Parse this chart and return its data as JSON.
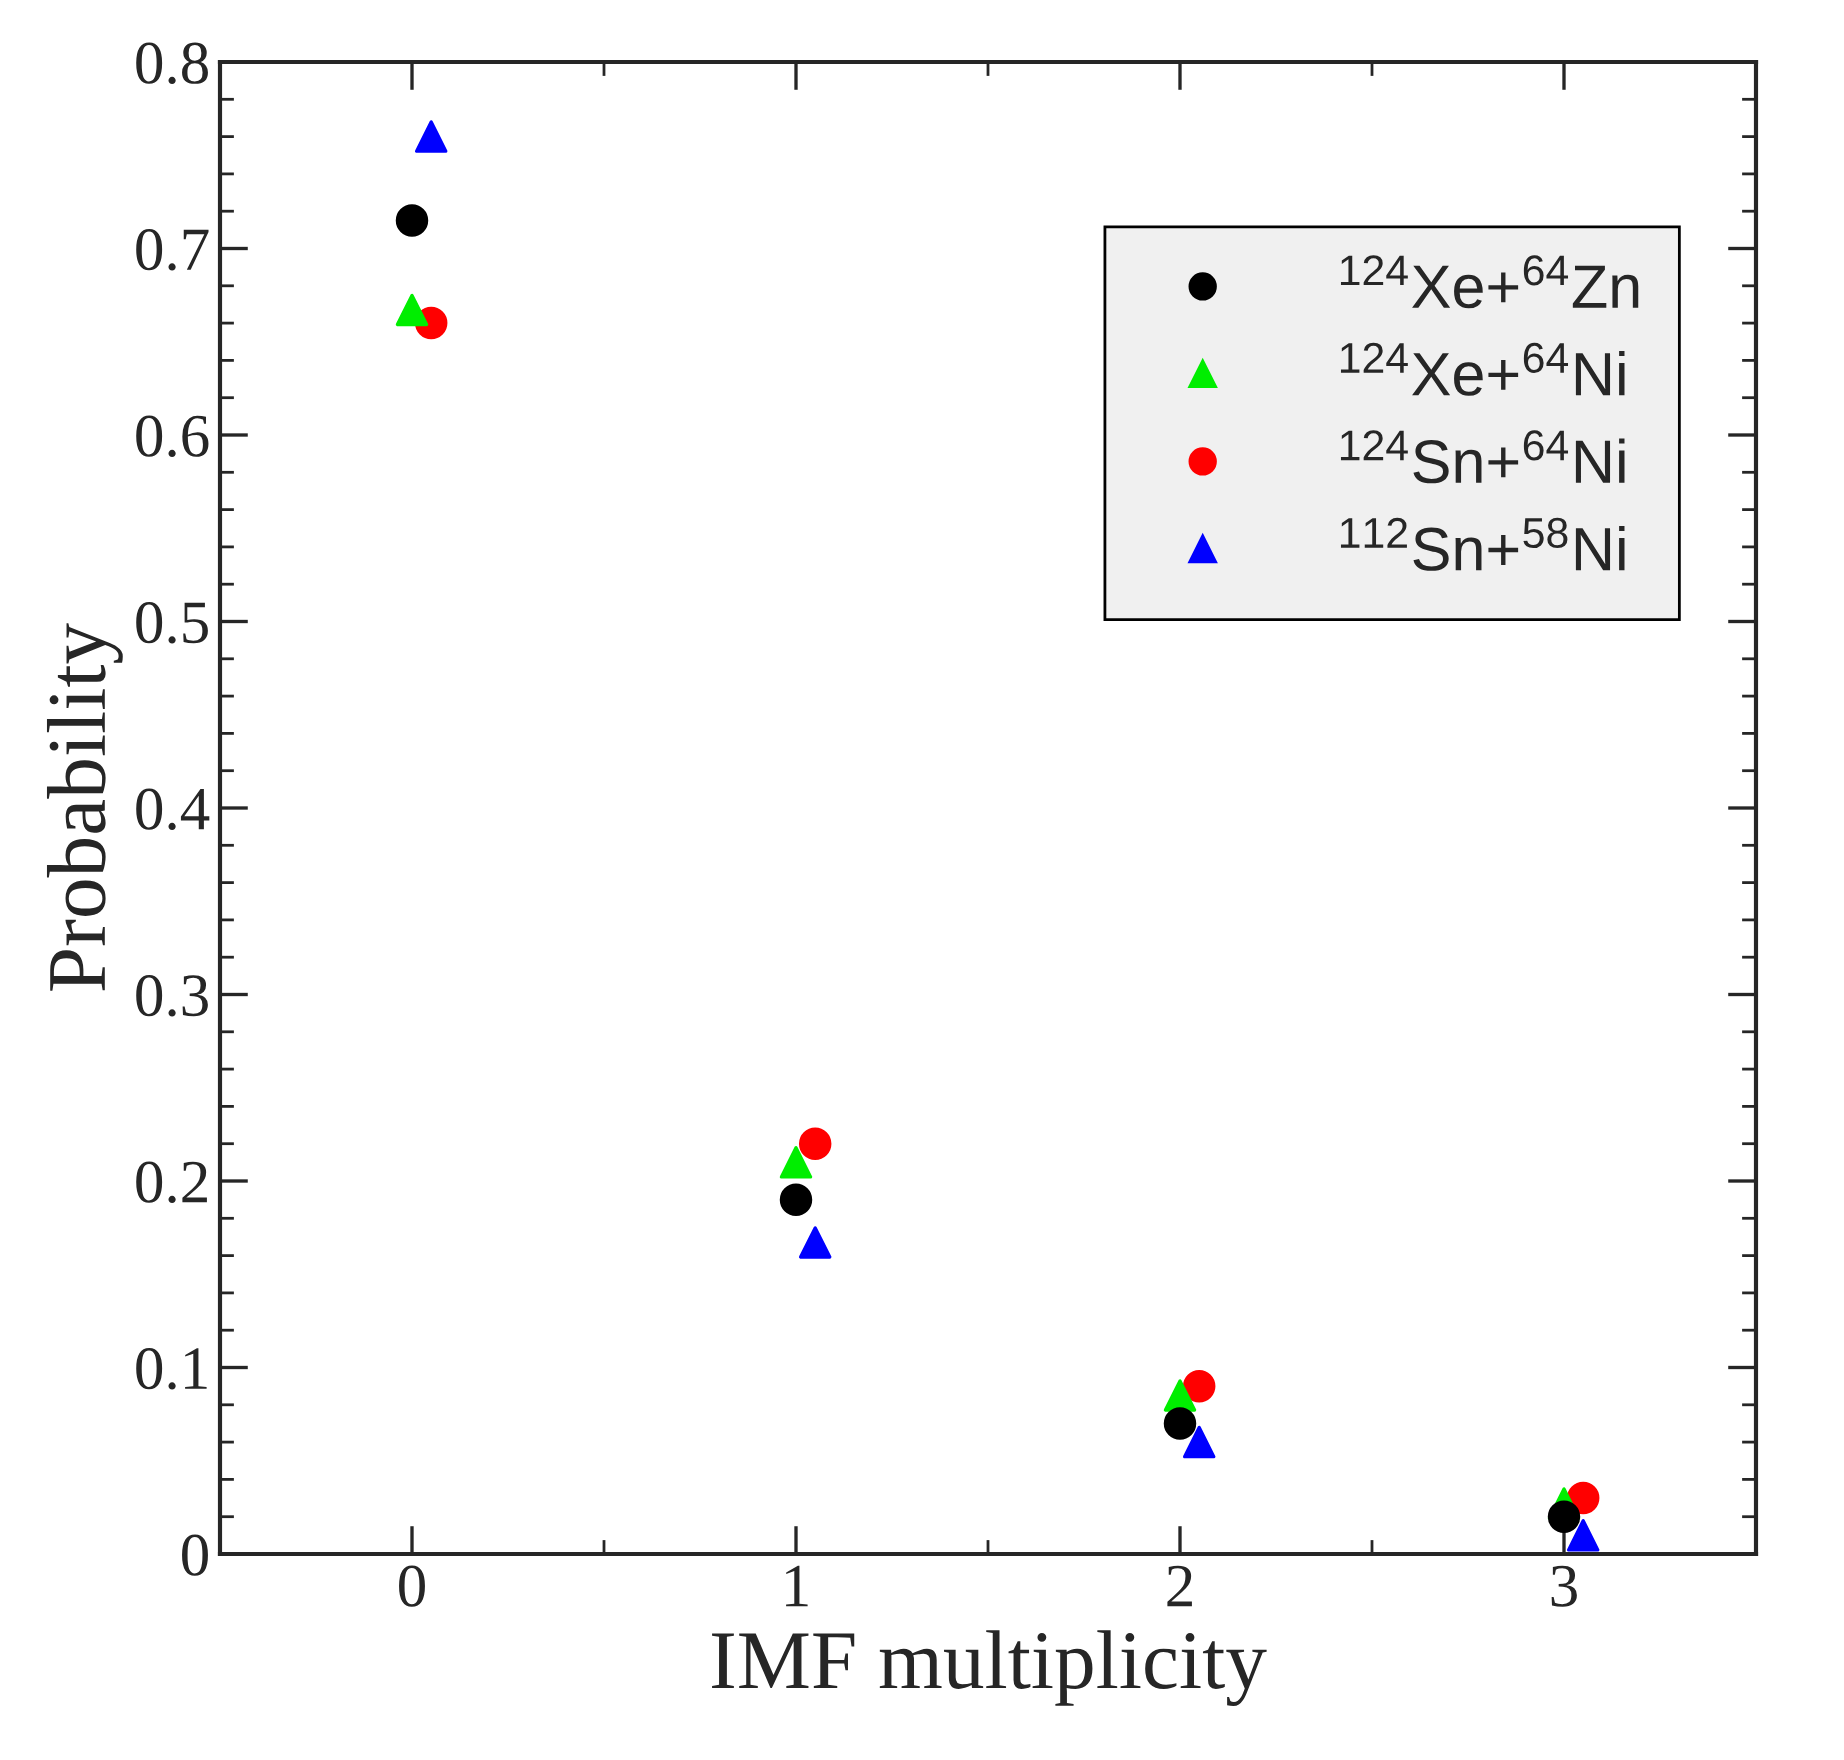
{
  "chart_data": {
    "type": "scatter",
    "xlabel": "IMF multiplicity",
    "ylabel": "Probability",
    "xlim": [
      -0.5,
      3.5
    ],
    "xticks": [
      0,
      1,
      2,
      3
    ],
    "ylim": [
      0,
      0.8
    ],
    "yticks": [
      0,
      0.1,
      0.2,
      0.3,
      0.4,
      0.5,
      0.6,
      0.7,
      0.8
    ],
    "grid": false,
    "legend": "top right",
    "series": [
      {
        "name": "$^{124}$Xe+$^{64}$Zn",
        "color": "#000000",
        "marker": "circle",
        "x": [
          0,
          1,
          2,
          3
        ],
        "values": [
          0.715,
          0.19,
          0.07,
          0.02
        ]
      },
      {
        "name": "$^{124}$Xe+$^{64}$Ni",
        "color": "#00ee00",
        "marker": "triangle",
        "x": [
          0,
          1,
          2,
          3
        ],
        "values": [
          0.667,
          0.21,
          0.085,
          0.027
        ]
      },
      {
        "name": "$^{124}$Sn+$^{64}$Ni",
        "color": "#ff0000",
        "marker": "circle",
        "x": [
          0.05,
          1.05,
          2.05,
          3.05
        ],
        "values": [
          0.66,
          0.22,
          0.09,
          0.03
        ]
      },
      {
        "name": "$^{112}$Sn+$^{58}$Ni",
        "color": "#0000ff",
        "marker": "triangle",
        "x": [
          0.05,
          1.05,
          2.05,
          3.05
        ],
        "values": [
          0.76,
          0.167,
          0.06,
          0.01
        ]
      }
    ]
  }
}
